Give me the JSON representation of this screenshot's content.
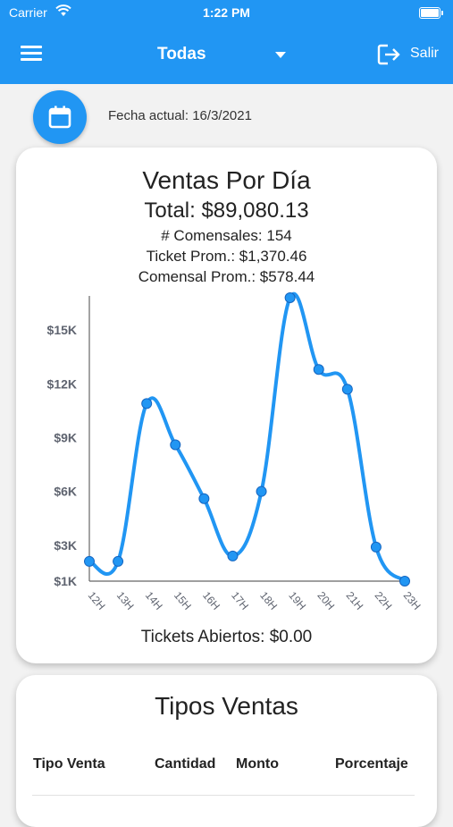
{
  "status_bar": {
    "carrier": "Carrier",
    "time": "1:22 PM"
  },
  "app_bar": {
    "title": "Todas",
    "logout_label": "Salir",
    "color": "#2196f3"
  },
  "fecha_actual": "Fecha actual: 16/3/2021",
  "ventas_card": {
    "title": "Ventas Por Día",
    "total": "Total: $89,080.13",
    "comensales": "# Comensales: 154",
    "ticket_prom": "Ticket Prom.: $1,370.46",
    "comensal_prom": "Comensal Prom.: $578.44",
    "tickets_abiertos": "Tickets Abiertos: $0.00"
  },
  "chart_data": {
    "type": "line",
    "x": [
      "12H",
      "13H",
      "14H",
      "15H",
      "16H",
      "17H",
      "18H",
      "19H",
      "20H",
      "21H",
      "22H",
      "23H"
    ],
    "values": [
      2100,
      2100,
      10900,
      8600,
      5600,
      2400,
      6000,
      16800,
      12800,
      11700,
      2900,
      1000
    ],
    "y_ticks": [
      1000,
      3000,
      6000,
      9000,
      12000,
      15000
    ],
    "y_tick_labels": [
      "$1K",
      "$3K",
      "$6K",
      "$9K",
      "$12K",
      "$15K"
    ],
    "ylim": [
      1000,
      16800
    ],
    "line_color": "#2196f3",
    "curve": "smooth",
    "grid": false
  },
  "tipos_card": {
    "title": "Tipos Ventas",
    "columns": [
      "Tipo Venta",
      "Cantidad",
      "Monto",
      "Porcentaje"
    ]
  }
}
